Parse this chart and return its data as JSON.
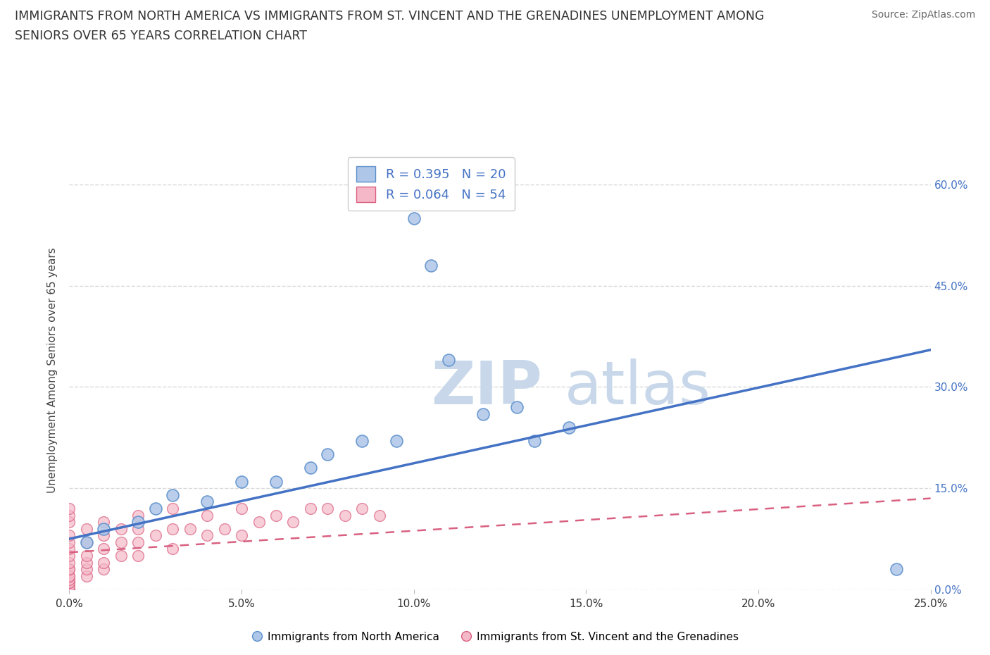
{
  "title_line1": "IMMIGRANTS FROM NORTH AMERICA VS IMMIGRANTS FROM ST. VINCENT AND THE GRENADINES UNEMPLOYMENT AMONG",
  "title_line2": "SENIORS OVER 65 YEARS CORRELATION CHART",
  "source": "Source: ZipAtlas.com",
  "ylabel": "Unemployment Among Seniors over 65 years",
  "xlim": [
    0.0,
    0.25
  ],
  "ylim": [
    0.0,
    0.65
  ],
  "xticks": [
    0.0,
    0.05,
    0.1,
    0.15,
    0.2,
    0.25
  ],
  "xticklabels": [
    "0.0%",
    "5.0%",
    "10.0%",
    "15.0%",
    "20.0%",
    "25.0%"
  ],
  "yticks_right": [
    0.0,
    0.15,
    0.3,
    0.45,
    0.6
  ],
  "ytick_labels_right": [
    "0.0%",
    "15.0%",
    "30.0%",
    "45.0%",
    "60.0%"
  ],
  "blue_R": "0.395",
  "blue_N": "20",
  "pink_R": "0.064",
  "pink_N": "54",
  "blue_color": "#aec6e8",
  "blue_edge_color": "#5b8fcc",
  "blue_line_color": "#4472c4",
  "pink_color": "#f5b8c8",
  "pink_edge_color": "#d96080",
  "pink_line_color": "#d96080",
  "blue_scatter_x": [
    0.005,
    0.01,
    0.02,
    0.025,
    0.03,
    0.04,
    0.05,
    0.06,
    0.07,
    0.075,
    0.085,
    0.095,
    0.1,
    0.105,
    0.11,
    0.12,
    0.13,
    0.135,
    0.145,
    0.24
  ],
  "blue_scatter_y": [
    0.07,
    0.09,
    0.1,
    0.12,
    0.14,
    0.13,
    0.16,
    0.16,
    0.18,
    0.2,
    0.22,
    0.22,
    0.55,
    0.48,
    0.34,
    0.26,
    0.27,
    0.22,
    0.24,
    0.03
  ],
  "pink_scatter_x": [
    0.0,
    0.0,
    0.0,
    0.0,
    0.0,
    0.0,
    0.0,
    0.0,
    0.0,
    0.0,
    0.0,
    0.0,
    0.0,
    0.0,
    0.0,
    0.0,
    0.0,
    0.0,
    0.005,
    0.005,
    0.005,
    0.005,
    0.005,
    0.005,
    0.01,
    0.01,
    0.01,
    0.01,
    0.01,
    0.015,
    0.015,
    0.015,
    0.02,
    0.02,
    0.02,
    0.02,
    0.025,
    0.03,
    0.03,
    0.03,
    0.035,
    0.04,
    0.04,
    0.045,
    0.05,
    0.05,
    0.055,
    0.06,
    0.065,
    0.07,
    0.075,
    0.08,
    0.085,
    0.09
  ],
  "pink_scatter_y": [
    0.0,
    0.0,
    0.005,
    0.01,
    0.01,
    0.015,
    0.02,
    0.02,
    0.03,
    0.03,
    0.04,
    0.05,
    0.06,
    0.07,
    0.08,
    0.1,
    0.11,
    0.12,
    0.02,
    0.03,
    0.04,
    0.05,
    0.07,
    0.09,
    0.03,
    0.04,
    0.06,
    0.08,
    0.1,
    0.05,
    0.07,
    0.09,
    0.05,
    0.07,
    0.09,
    0.11,
    0.08,
    0.06,
    0.09,
    0.12,
    0.09,
    0.08,
    0.11,
    0.09,
    0.08,
    0.12,
    0.1,
    0.11,
    0.1,
    0.12,
    0.12,
    0.11,
    0.12,
    0.11
  ],
  "watermark_zip": "ZIP",
  "watermark_atlas": "atlas",
  "watermark_color": "#c8d8ea",
  "background_color": "#ffffff",
  "grid_color": "#d8d8d8"
}
